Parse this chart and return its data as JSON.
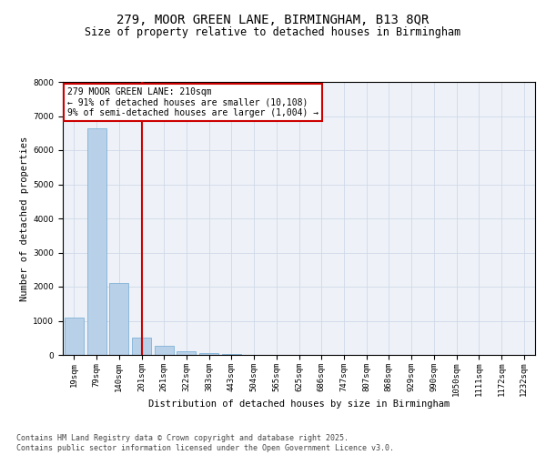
{
  "title_line1": "279, MOOR GREEN LANE, BIRMINGHAM, B13 8QR",
  "title_line2": "Size of property relative to detached houses in Birmingham",
  "xlabel": "Distribution of detached houses by size in Birmingham",
  "ylabel": "Number of detached properties",
  "categories": [
    "19sqm",
    "79sqm",
    "140sqm",
    "201sqm",
    "261sqm",
    "322sqm",
    "383sqm",
    "443sqm",
    "504sqm",
    "565sqm",
    "625sqm",
    "686sqm",
    "747sqm",
    "807sqm",
    "868sqm",
    "929sqm",
    "990sqm",
    "1050sqm",
    "1111sqm",
    "1172sqm",
    "1232sqm"
  ],
  "values": [
    1100,
    6650,
    2100,
    500,
    270,
    120,
    60,
    30,
    10,
    5,
    2,
    2,
    1,
    1,
    1,
    1,
    1,
    0,
    0,
    0,
    0
  ],
  "bar_color": "#b8d0e8",
  "bar_edge_color": "#6fa8d4",
  "vline_x": 3.0,
  "vline_color": "#cc0000",
  "annotation_text": "279 MOOR GREEN LANE: 210sqm\n← 91% of detached houses are smaller (10,108)\n9% of semi-detached houses are larger (1,004) →",
  "annotation_box_color": "#cc0000",
  "ylim": [
    0,
    8000
  ],
  "yticks": [
    0,
    1000,
    2000,
    3000,
    4000,
    5000,
    6000,
    7000,
    8000
  ],
  "grid_color": "#d0d8e8",
  "background_color": "#eef2f8",
  "footer_text": "Contains HM Land Registry data © Crown copyright and database right 2025.\nContains public sector information licensed under the Open Government Licence v3.0.",
  "title_fontsize": 10,
  "subtitle_fontsize": 8.5,
  "axis_label_fontsize": 7.5,
  "tick_fontsize": 6.5,
  "annotation_fontsize": 7,
  "footer_fontsize": 6
}
